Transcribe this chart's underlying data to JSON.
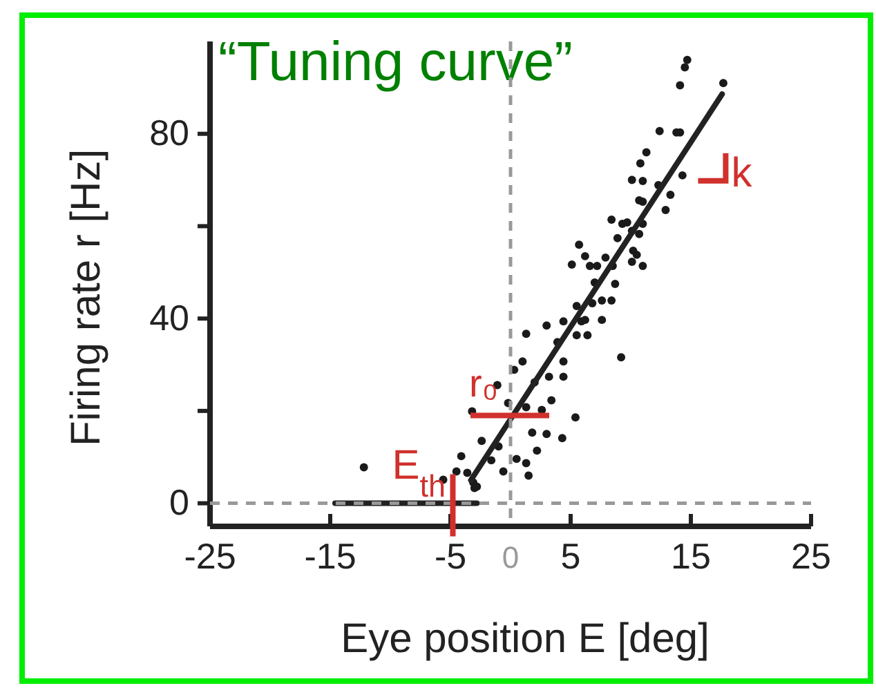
{
  "chart_data": {
    "type": "scatter",
    "title": "“Tuning curve”",
    "xlabel": "Eye position E [deg]",
    "ylabel": "Firing rate r [Hz]",
    "xlim": [
      -25,
      25
    ],
    "xticks": [
      -25,
      -15,
      -5,
      5,
      15,
      25
    ],
    "ylim": [
      -5,
      100
    ],
    "yticks": [
      0,
      {
        "value": 20,
        "label": null
      },
      40,
      {
        "value": 60,
        "label": null
      },
      80
    ],
    "grid": false,
    "series": [
      {
        "color": "#1a1a1a",
        "marker": "circle",
        "x": [
          14.7,
          14.5,
          14.1,
          17.7,
          12.4,
          13.8,
          14.1,
          11.3,
          10.8,
          14.3,
          10.1,
          11.0,
          12.3,
          13.3,
          10.7,
          11.0,
          12.9,
          8.4,
          9.7,
          9.3,
          11.0,
          10.1,
          10.7,
          8.9,
          5.7,
          10.2,
          6.2,
          7.9,
          10.5,
          5.1,
          6.6,
          7.2,
          8.5,
          10.1,
          11.0,
          8.7,
          7.0,
          7.6,
          8.4,
          5.5,
          6.8,
          5.9,
          6.2,
          7.6,
          4.4,
          3.0,
          1.3,
          5.5,
          6.4,
          3.9,
          9.2,
          1.0,
          4.4,
          0.3,
          3.2,
          4.4,
          2.0,
          -1.1,
          3.4,
          -0.2,
          1.3,
          2.6,
          -3.2,
          5.4,
          1.8,
          3.0,
          4.3,
          -2.4,
          -1.0,
          2.2,
          -4.1,
          -1.6,
          0.5,
          1.3,
          -12.2,
          -4.5,
          -3.6,
          -0.6,
          1.5,
          -5.6,
          -3.1,
          -3.0,
          -2.8
        ],
        "values": [
          96,
          94.4,
          90.5,
          91,
          80.6,
          80.3,
          80.3,
          76,
          73.6,
          71,
          70,
          69.8,
          68.9,
          66.8,
          65.6,
          65.3,
          63.5,
          61.4,
          60.8,
          60.5,
          60.5,
          59,
          58.3,
          57.4,
          56,
          54.7,
          53.5,
          53.2,
          53.8,
          51.7,
          51.4,
          51.4,
          51.4,
          52.3,
          51.4,
          47.5,
          47.8,
          43.9,
          43.9,
          42.7,
          43.3,
          39.4,
          39.7,
          39.7,
          39.4,
          38.5,
          36.7,
          36.4,
          36.4,
          34.9,
          31.6,
          30.7,
          30.7,
          28.9,
          27.4,
          27.4,
          26.2,
          25.6,
          22.3,
          21.7,
          20.8,
          20.2,
          19.9,
          18.6,
          15.3,
          15.0,
          14.1,
          13.5,
          12.3,
          11.4,
          10.2,
          9.3,
          9.6,
          8.7,
          7.8,
          6.9,
          6.6,
          6.9,
          6.0,
          5.1,
          4.5,
          3.3,
          3.6
        ]
      },
      {
        "type": "line",
        "color": "#222222",
        "x": [
          -14.6,
          -2.8,
          null,
          -3.3,
          17.6
        ],
        "values": [
          0,
          0,
          null,
          5,
          88.6
        ]
      }
    ],
    "ref_lines": [
      {
        "axis": "x",
        "value": 0,
        "label": "0",
        "color": "#999999",
        "line_style": "dashed"
      },
      {
        "axis": "y",
        "value": 0,
        "color": "#999999",
        "line_style": "dashed"
      }
    ],
    "annotations": [
      {
        "text": "r₀",
        "x": 0,
        "y": 19
      },
      {
        "text": "E$_{th}$",
        "x": -4.8,
        "y": 0
      },
      {
        "text": "k",
        "x": 15.6,
        "y": 80.6
      }
    ]
  }
}
